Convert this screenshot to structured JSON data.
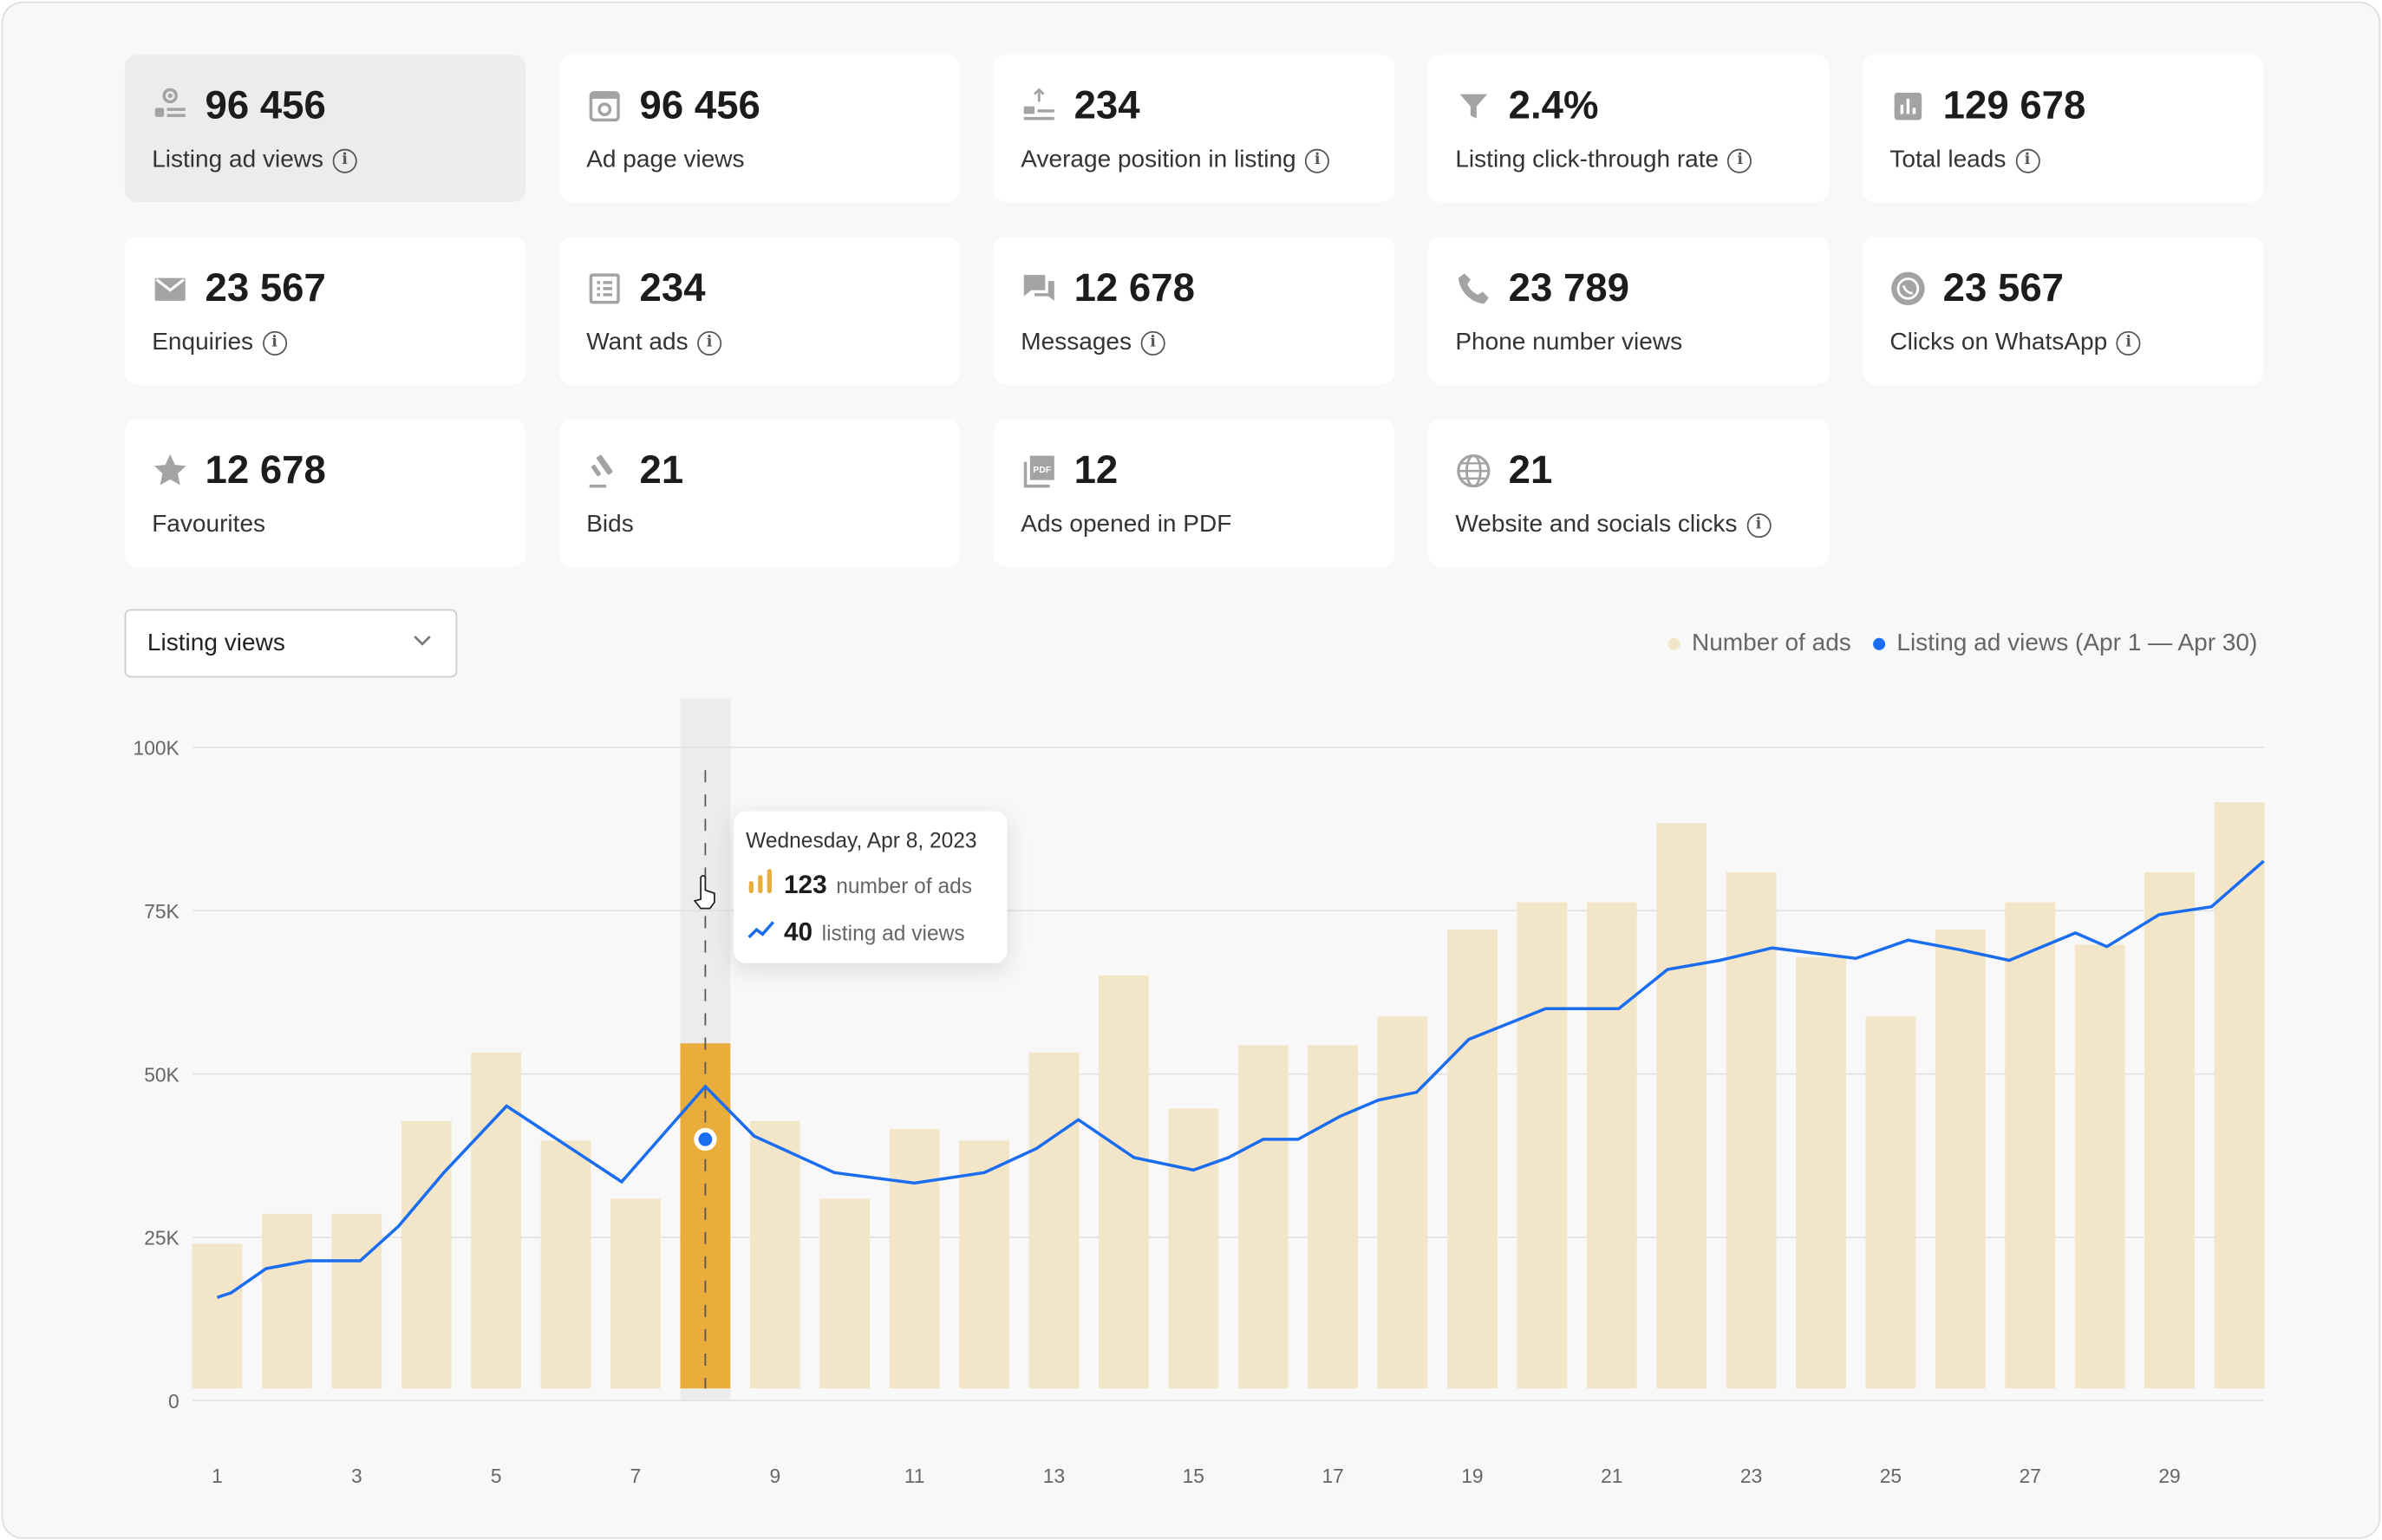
{
  "metrics": [
    {
      "value": "96 456",
      "label": "Listing ad views",
      "info": true,
      "icon": "listing-views-icon",
      "active": true
    },
    {
      "value": "96 456",
      "label": "Ad page views",
      "info": false,
      "icon": "ad-page-views-icon"
    },
    {
      "value": "234",
      "label": "Average position in listing",
      "info": true,
      "icon": "position-icon"
    },
    {
      "value": "2.4%",
      "label": "Listing click-through rate",
      "info": true,
      "icon": "funnel-icon"
    },
    {
      "value": "129 678",
      "label": "Total leads",
      "info": true,
      "icon": "bar-chart-icon"
    },
    {
      "value": "23 567",
      "label": "Enquiries",
      "info": true,
      "icon": "envelope-icon"
    },
    {
      "value": "234",
      "label": "Want ads",
      "info": true,
      "icon": "list-icon"
    },
    {
      "value": "12 678",
      "label": "Messages",
      "info": true,
      "icon": "chat-icon"
    },
    {
      "value": "23 789",
      "label": "Phone number views",
      "info": false,
      "icon": "phone-icon"
    },
    {
      "value": "23 567",
      "label": "Clicks on WhatsApp",
      "info": true,
      "icon": "whatsapp-icon"
    },
    {
      "value": "12 678",
      "label": "Favourites",
      "info": false,
      "icon": "star-icon"
    },
    {
      "value": "21",
      "label": "Bids",
      "info": false,
      "icon": "gavel-icon"
    },
    {
      "value": "12",
      "label": "Ads opened in PDF",
      "info": false,
      "icon": "pdf-icon"
    },
    {
      "value": "21",
      "label": "Website and socials clicks",
      "info": true,
      "icon": "globe-icon"
    }
  ],
  "info_glyph": "i",
  "dropdown": {
    "selected": "Listing views"
  },
  "legend": {
    "bars": "Number of ads",
    "line": "Listing ad views (Apr 1 — Apr 30)"
  },
  "tooltip": {
    "date": "Wednesday, Apr 8, 2023",
    "ads_value": "123",
    "ads_label": "number of ads",
    "views_value": "40",
    "views_label": "listing ad views"
  },
  "colors": {
    "bar": "#f3e5c8",
    "bar_highlight": "#e8ad3a",
    "line": "#1a6cf0",
    "highlight_band": "#ececec"
  },
  "chart_data": {
    "type": "bar",
    "xlabel": "",
    "ylabel": "",
    "ylim": [
      0,
      100000
    ],
    "yticks": [
      {
        "v": 0,
        "label": "0"
      },
      {
        "v": 25000,
        "label": "25K"
      },
      {
        "v": 50000,
        "label": "50K"
      },
      {
        "v": 75000,
        "label": "75K"
      },
      {
        "v": 100000,
        "label": "100K"
      }
    ],
    "xticks": [
      1,
      3,
      5,
      7,
      9,
      11,
      13,
      15,
      17,
      19,
      21,
      23,
      25,
      27,
      29
    ],
    "grid": true,
    "legend": "top-right",
    "highlighted_day": 8,
    "categories": [
      1,
      2,
      3,
      4,
      5,
      6,
      7,
      8,
      9,
      10,
      11,
      12,
      13,
      14,
      15,
      16,
      17,
      18,
      19,
      20,
      21,
      22,
      23,
      24,
      25,
      26,
      27,
      28,
      29,
      30
    ],
    "series": [
      {
        "name": "Number of ads",
        "type": "bar",
        "values": [
          24000,
          28600,
          28600,
          42800,
          53300,
          39800,
          30900,
          54700,
          42800,
          30900,
          41600,
          39800,
          53300,
          65100,
          44700,
          54400,
          54400,
          58800,
          72100,
          76300,
          76300,
          88400,
          80900,
          67900,
          58800,
          72100,
          76300,
          69800,
          80900,
          91600
        ]
      },
      {
        "name": "Listing ad views (Apr 1 — Apr 30)",
        "type": "line",
        "points": [
          [
            1,
            15800
          ],
          [
            1.2,
            16500
          ],
          [
            1.7,
            20200
          ],
          [
            2.3,
            21400
          ],
          [
            3.05,
            21400
          ],
          [
            3.6,
            26700
          ],
          [
            4.25,
            34900
          ],
          [
            5.15,
            45100
          ],
          [
            6.8,
            33500
          ],
          [
            8,
            48100
          ],
          [
            8.7,
            40500
          ],
          [
            9.85,
            34900
          ],
          [
            11,
            33300
          ],
          [
            12,
            34900
          ],
          [
            12.75,
            38600
          ],
          [
            13.35,
            43000
          ],
          [
            14.15,
            37200
          ],
          [
            15,
            35300
          ],
          [
            15.5,
            37200
          ],
          [
            16,
            40000
          ],
          [
            16.5,
            40000
          ],
          [
            17.1,
            43500
          ],
          [
            17.65,
            46000
          ],
          [
            18.2,
            47200
          ],
          [
            18.95,
            55300
          ],
          [
            20.05,
            60000
          ],
          [
            21.1,
            60000
          ],
          [
            21.8,
            66000
          ],
          [
            22.55,
            67400
          ],
          [
            23.3,
            69300
          ],
          [
            24.5,
            67700
          ],
          [
            25.25,
            70500
          ],
          [
            26,
            69000
          ],
          [
            26.7,
            67400
          ],
          [
            27.65,
            71600
          ],
          [
            28.1,
            69500
          ],
          [
            28.85,
            74400
          ],
          [
            29.6,
            75600
          ],
          [
            30.35,
            82600
          ]
        ]
      }
    ]
  }
}
